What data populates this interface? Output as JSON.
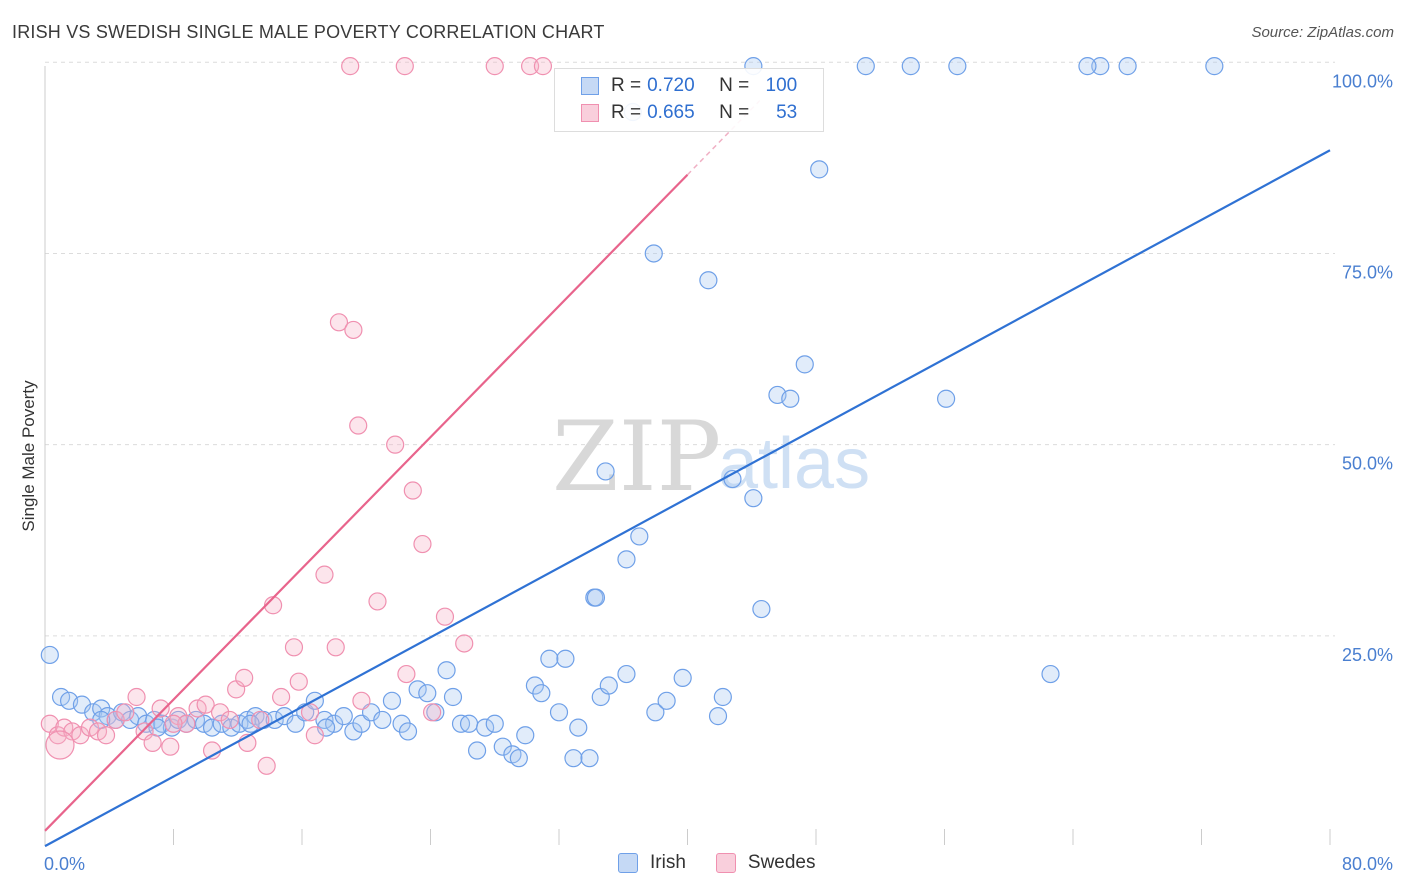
{
  "header": {
    "title": "IRISH VS SWEDISH SINGLE MALE POVERTY CORRELATION CHART",
    "source": "Source: ZipAtlas.com"
  },
  "watermark": {
    "zip": "ZIP",
    "atlas": "atlas"
  },
  "legend": {
    "rows": [
      {
        "r_label": "R =",
        "r_value": "0.720",
        "n_label": "N =",
        "n_value": "100",
        "color": "#6fa0e8"
      },
      {
        "r_label": "R =",
        "r_value": "0.665",
        "n_label": "N =",
        "n_value": "53",
        "color": "#f090b0"
      }
    ]
  },
  "bottom_legend": [
    {
      "label": "Irish",
      "color": "#6fa0e8"
    },
    {
      "label": "Swedes",
      "color": "#f090b0"
    }
  ],
  "chart_data": {
    "type": "scatter",
    "title": "IRISH VS SWEDISH SINGLE MALE POVERTY CORRELATION CHART",
    "ylabel": "Single Male Poverty",
    "xlabel": "",
    "xlim": [
      0,
      80
    ],
    "ylim": [
      0,
      100
    ],
    "x_tick_labels": [
      "0.0%",
      "80.0%"
    ],
    "y_tick_labels": [
      "25.0%",
      "50.0%",
      "75.0%",
      "100.0%"
    ],
    "y_tick_values": [
      25,
      50,
      75,
      100
    ],
    "grid": true,
    "colors": {
      "irish": "#6fa0e8",
      "irish_line": "#2f72d4",
      "swedes": "#f090b0",
      "swedes_line": "#e8648c"
    },
    "series": [
      {
        "name": "Irish",
        "trend": {
          "x": [
            0,
            80
          ],
          "y": [
            -2.5,
            88.5
          ]
        },
        "points": [
          [
            0.3,
            22.5
          ],
          [
            1.0,
            17
          ],
          [
            1.5,
            16.5
          ],
          [
            2.3,
            16
          ],
          [
            3.0,
            15
          ],
          [
            3.5,
            15.5
          ],
          [
            3.9,
            14.5
          ],
          [
            4.4,
            14
          ],
          [
            4.8,
            15
          ],
          [
            5.3,
            14
          ],
          [
            5.8,
            14.5
          ],
          [
            6.3,
            13.5
          ],
          [
            6.8,
            14
          ],
          [
            7.3,
            13.5
          ],
          [
            7.9,
            13
          ],
          [
            8.3,
            14
          ],
          [
            8.8,
            13.5
          ],
          [
            9.4,
            14
          ],
          [
            9.9,
            13.5
          ],
          [
            10.4,
            13
          ],
          [
            11.0,
            13.5
          ],
          [
            11.6,
            13
          ],
          [
            12.1,
            13.5
          ],
          [
            12.6,
            14
          ],
          [
            13.1,
            14.5
          ],
          [
            13.6,
            14
          ],
          [
            14.3,
            14
          ],
          [
            14.9,
            14.5
          ],
          [
            15.6,
            13.5
          ],
          [
            16.2,
            15
          ],
          [
            16.8,
            16.5
          ],
          [
            17.4,
            14
          ],
          [
            18.0,
            13.5
          ],
          [
            18.6,
            14.5
          ],
          [
            19.2,
            12.5
          ],
          [
            19.7,
            13.5
          ],
          [
            20.3,
            15
          ],
          [
            21.0,
            14
          ],
          [
            21.6,
            16.5
          ],
          [
            22.2,
            13.5
          ],
          [
            22.6,
            12.5
          ],
          [
            23.2,
            18
          ],
          [
            23.8,
            17.5
          ],
          [
            24.3,
            15
          ],
          [
            25.0,
            20.5
          ],
          [
            25.4,
            17
          ],
          [
            25.9,
            13.5
          ],
          [
            26.4,
            13.5
          ],
          [
            26.9,
            10
          ],
          [
            27.4,
            13
          ],
          [
            28.0,
            13.5
          ],
          [
            28.5,
            10.5
          ],
          [
            29.1,
            9.5
          ],
          [
            29.5,
            9
          ],
          [
            29.9,
            12
          ],
          [
            30.5,
            18.5
          ],
          [
            30.9,
            17.5
          ],
          [
            31.4,
            22
          ],
          [
            32.0,
            15
          ],
          [
            32.4,
            22
          ],
          [
            32.9,
            9
          ],
          [
            33.2,
            13
          ],
          [
            33.9,
            9
          ],
          [
            34.2,
            30
          ],
          [
            34.6,
            17
          ],
          [
            35.1,
            18.5
          ],
          [
            36.2,
            20
          ],
          [
            36.6,
            93.5
          ],
          [
            38.0,
            15
          ],
          [
            38.7,
            16.5
          ],
          [
            39.7,
            19.5
          ],
          [
            41.9,
            14.5
          ],
          [
            42.2,
            17
          ],
          [
            44.6,
            28.5
          ],
          [
            45.6,
            56.5
          ],
          [
            46.4,
            56
          ],
          [
            47.3,
            60.5
          ],
          [
            48.2,
            86
          ],
          [
            51.1,
            99.5
          ],
          [
            53.9,
            99.5
          ],
          [
            56.8,
            99.5
          ],
          [
            56.1,
            56
          ],
          [
            62.6,
            20
          ],
          [
            67.4,
            99.5
          ],
          [
            65.7,
            99.5
          ],
          [
            64.9,
            99.5
          ],
          [
            72.8,
            99.5
          ],
          [
            37.9,
            75
          ],
          [
            41.3,
            71.5
          ],
          [
            42.8,
            45.5
          ],
          [
            44.1,
            43
          ],
          [
            37.0,
            38
          ],
          [
            36.2,
            35
          ],
          [
            34.9,
            46.5
          ],
          [
            34.3,
            30
          ],
          [
            44.1,
            99.5
          ],
          [
            3.5,
            14
          ],
          [
            7.0,
            13
          ],
          [
            12.8,
            13.5
          ],
          [
            17.5,
            13
          ]
        ]
      },
      {
        "name": "Swedes",
        "trend": {
          "x": [
            0,
            40
          ],
          "y": [
            -0.5,
            85.3
          ]
        },
        "trend_dashed": {
          "x": [
            40,
            44.5
          ],
          "y": [
            85.3,
            95
          ]
        },
        "points": [
          [
            0.3,
            13.5
          ],
          [
            0.8,
            12
          ],
          [
            1.2,
            13
          ],
          [
            1.7,
            12.5
          ],
          [
            2.2,
            12
          ],
          [
            2.8,
            13
          ],
          [
            3.3,
            12.5
          ],
          [
            3.8,
            12
          ],
          [
            4.4,
            14
          ],
          [
            5.0,
            15
          ],
          [
            5.7,
            17
          ],
          [
            6.2,
            12.5
          ],
          [
            6.7,
            11
          ],
          [
            7.2,
            15.5
          ],
          [
            7.8,
            10.5
          ],
          [
            8.3,
            14.5
          ],
          [
            8.8,
            13.5
          ],
          [
            9.5,
            15.5
          ],
          [
            10.0,
            16
          ],
          [
            10.4,
            10
          ],
          [
            10.9,
            15
          ],
          [
            11.5,
            14
          ],
          [
            11.9,
            18
          ],
          [
            12.4,
            19.5
          ],
          [
            12.6,
            11
          ],
          [
            13.4,
            14
          ],
          [
            13.8,
            8
          ],
          [
            14.2,
            29
          ],
          [
            14.7,
            17
          ],
          [
            15.5,
            23.5
          ],
          [
            15.8,
            19
          ],
          [
            16.5,
            15
          ],
          [
            16.8,
            12
          ],
          [
            17.4,
            33
          ],
          [
            18.1,
            23.5
          ],
          [
            18.3,
            66
          ],
          [
            19.2,
            65
          ],
          [
            19.5,
            52.5
          ],
          [
            19.7,
            16.5
          ],
          [
            20.7,
            29.5
          ],
          [
            21.8,
            50
          ],
          [
            22.5,
            20
          ],
          [
            22.9,
            44
          ],
          [
            23.5,
            37
          ],
          [
            24.1,
            15
          ],
          [
            24.9,
            27.5
          ],
          [
            26.1,
            24
          ],
          [
            19.0,
            99.5
          ],
          [
            22.4,
            99.5
          ],
          [
            28.0,
            99.5
          ],
          [
            30.2,
            99.5
          ],
          [
            31.0,
            99.5
          ],
          [
            8.0,
            13.5
          ]
        ]
      }
    ]
  }
}
